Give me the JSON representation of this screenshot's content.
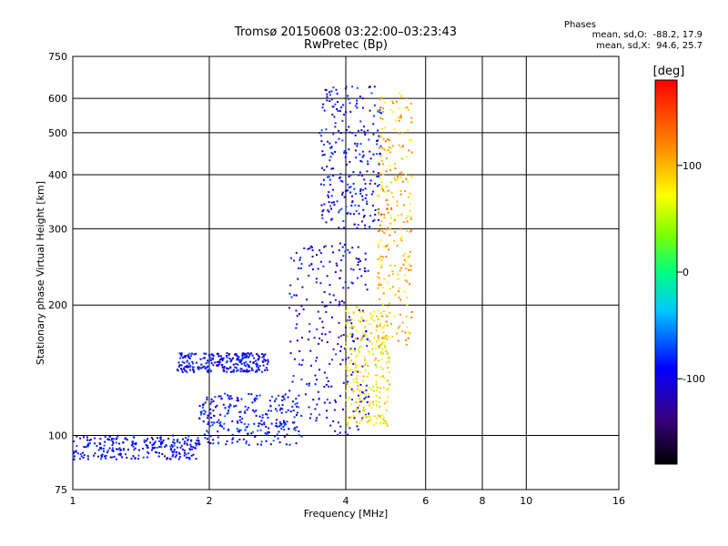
{
  "chart_data": {
    "type": "scatter",
    "title": "Tromsø 20150608 03:22:00–03:23:43",
    "subtitle": "RwPretec (Bp)",
    "xlabel": "Frequency [MHz]",
    "ylabel": "Stationary phase Virtual Height [km]",
    "x_scale": "log",
    "y_scale": "log",
    "xlim": [
      1,
      16
    ],
    "ylim": [
      75,
      750
    ],
    "x_ticks": [
      1,
      2,
      4,
      6,
      8,
      10,
      16
    ],
    "y_ticks": [
      75,
      100,
      200,
      300,
      400,
      500,
      600,
      750
    ],
    "grid": true,
    "colorbar": {
      "label": "[deg]",
      "range": [
        -180,
        180
      ],
      "ticks": [
        100,
        0,
        -100
      ]
    },
    "phases": {
      "title": "Phases",
      "o_line": "mean, sd,O:  -88.2, 17.9",
      "x_line": "mean, sd,X:  94.6, 25.7"
    },
    "clusters": [
      {
        "x_range": [
          1.0,
          1.9
        ],
        "y_range": [
          88,
          100
        ],
        "phase": -95
      },
      {
        "x_range": [
          1.9,
          3.2
        ],
        "y_range": [
          95,
          125
        ],
        "phase": -90
      },
      {
        "x_range": [
          1.7,
          2.7
        ],
        "y_range": [
          140,
          155
        ],
        "phase": -95
      },
      {
        "x_range": [
          3.0,
          4.5
        ],
        "y_range": [
          100,
          280
        ],
        "phase": -100
      },
      {
        "x_range": [
          3.5,
          4.8
        ],
        "y_range": [
          300,
          640
        ],
        "phase": -95
      },
      {
        "x_range": [
          4.0,
          5.0
        ],
        "y_range": [
          105,
          200
        ],
        "phase": 80
      },
      {
        "x_range": [
          4.7,
          5.6
        ],
        "y_range": [
          160,
          620
        ],
        "phase": 100
      }
    ]
  }
}
